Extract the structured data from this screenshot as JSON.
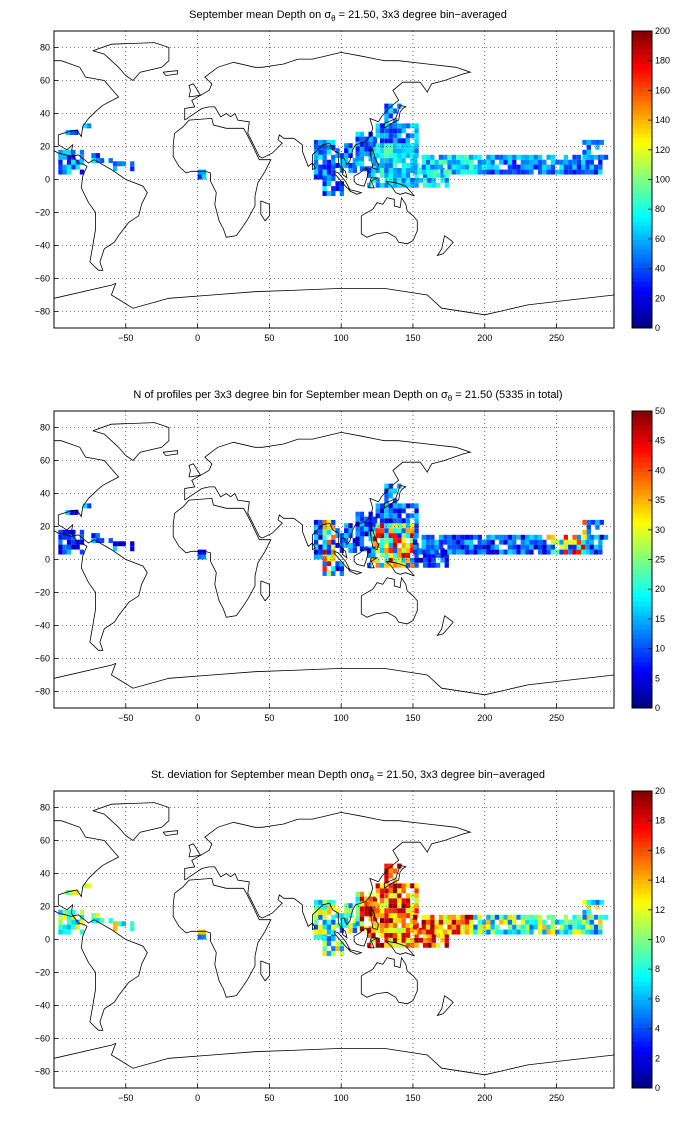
{
  "panels": [
    {
      "id": "mean-depth",
      "title_before": "September mean Depth on ",
      "title_symbol": "σ",
      "title_sub": "θ",
      "title_after": " = 21.50, 3x3 degree bin−averaged",
      "colorbar": {
        "min": 0,
        "max": 200,
        "ticks": [
          0,
          20,
          40,
          60,
          80,
          100,
          120,
          140,
          160,
          180,
          200
        ]
      }
    },
    {
      "id": "profile-count",
      "title_before": "N of profiles per 3x3 degree bin for September mean Depth on ",
      "title_symbol": "σ",
      "title_sub": "θ",
      "title_after": " = 21.50 (5335 in total)",
      "colorbar": {
        "min": 0,
        "max": 50,
        "ticks": [
          0,
          5,
          10,
          15,
          20,
          25,
          30,
          35,
          40,
          45,
          50
        ]
      }
    },
    {
      "id": "std-dev",
      "title_before": "St. deviation for September mean Depth on",
      "title_symbol": "σ",
      "title_sub": "θ",
      "title_after": " = 21.50, 3x3 degree bin−averaged",
      "colorbar": {
        "min": 0,
        "max": 20,
        "ticks": [
          0,
          2,
          4,
          6,
          8,
          10,
          12,
          14,
          16,
          18,
          20
        ]
      }
    }
  ],
  "map_axes": {
    "xlim": [
      -100,
      290
    ],
    "ylim": [
      -90,
      90
    ],
    "xticks": [
      -50,
      0,
      50,
      100,
      150,
      200,
      250
    ],
    "yticks": [
      -80,
      -60,
      -40,
      -20,
      0,
      20,
      40,
      60,
      80
    ],
    "grid": "dotted"
  },
  "colors": {
    "colormap": "jet",
    "coastline": "#000000",
    "frame": "#000000"
  }
}
